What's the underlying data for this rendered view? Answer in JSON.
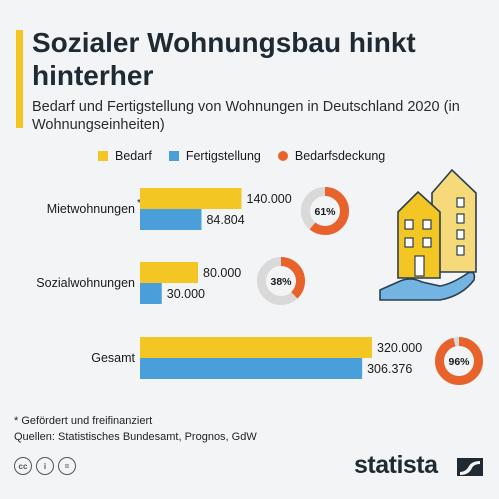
{
  "header": {
    "title": "Sozialer Wohnungsbau hinkt hinterher",
    "subtitle": "Bedarf und Fertigstellung von Wohnungen in Deutschland 2020 (in Wohnungseinheiten)"
  },
  "legend": {
    "bedarf": "Bedarf",
    "fertigstellung": "Fertigstellung",
    "deckung": "Bedarfsdeckung"
  },
  "colors": {
    "bedarf": "#f3c623",
    "fertigstellung": "#4a9fdb",
    "deckung": "#e8622c",
    "ring_bg": "#d9d9d9",
    "accent": "#f3c623"
  },
  "chart_data": {
    "type": "bar",
    "orientation": "horizontal",
    "categories": [
      "Mietwohnungen",
      "Sozialwohnungen",
      "Gesamt"
    ],
    "category_footnote_marks": [
      "*",
      "",
      ""
    ],
    "series": [
      {
        "name": "Bedarf",
        "values": [
          140000,
          80000,
          320000
        ],
        "labels": [
          "140.000",
          "80.000",
          "320.000"
        ]
      },
      {
        "name": "Fertigstellung",
        "values": [
          84804,
          30000,
          306376
        ],
        "labels": [
          "84.804",
          "30.000",
          "306.376"
        ]
      }
    ],
    "bedarfsdeckung": {
      "values": [
        61,
        38,
        96
      ],
      "labels": [
        "61%",
        "38%",
        "96%"
      ]
    },
    "xlim": [
      0,
      320000
    ],
    "legend_position": "top"
  },
  "footer": {
    "footnote": "* Gefördert und freifinanziert",
    "sources": "Quellen: Statistisches Bundesamt, Prognos, GdW",
    "brand": "statista",
    "license_icons": [
      "cc-icon",
      "by-icon",
      "nd-icon"
    ]
  }
}
